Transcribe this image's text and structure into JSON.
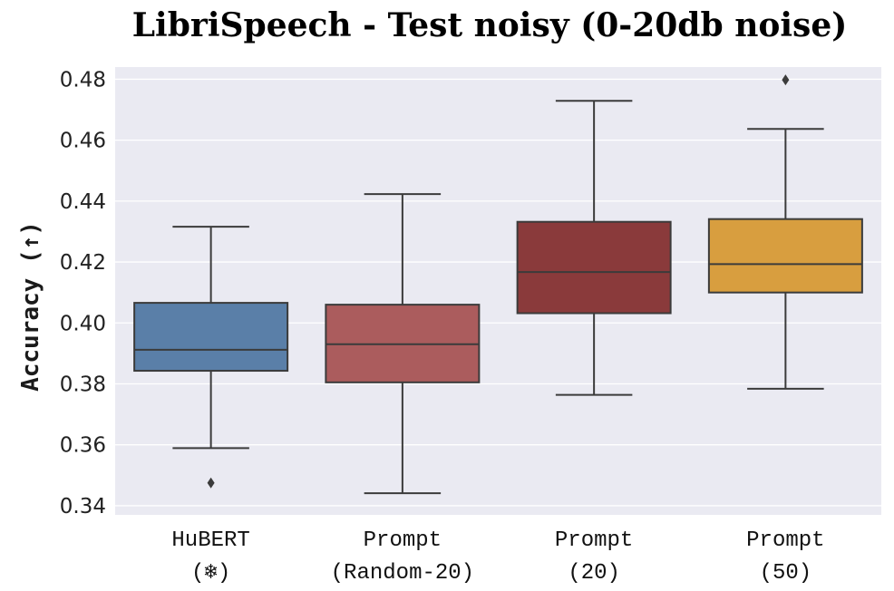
{
  "chart_data": {
    "type": "box",
    "title": "LibriSpeech - Test noisy (0-20db noise)",
    "xlabel": "",
    "ylabel": "Accuracy (↑)",
    "ylim": [
      0.337,
      0.484
    ],
    "yticks": [
      "0.34",
      "0.36",
      "0.38",
      "0.40",
      "0.42",
      "0.44",
      "0.46",
      "0.48"
    ],
    "grid": true,
    "categories": [
      {
        "line1": "HuBERT",
        "line2": "(❄)"
      },
      {
        "line1": "Prompt",
        "line2": "(Random-20)"
      },
      {
        "line1": "Prompt",
        "line2": "(20)"
      },
      {
        "line1": "Prompt",
        "line2": "(50)"
      }
    ],
    "boxes": [
      {
        "whisker_low": 0.3589,
        "q1": 0.3843,
        "median": 0.3912,
        "q3": 0.4066,
        "whisker_high": 0.4316,
        "outliers": [
          0.3475
        ],
        "color": "#5a7fa8"
      },
      {
        "whisker_low": 0.3441,
        "q1": 0.3805,
        "median": 0.393,
        "q3": 0.406,
        "whisker_high": 0.4423,
        "outliers": [],
        "color": "#ab5c5d"
      },
      {
        "whisker_low": 0.3764,
        "q1": 0.4032,
        "median": 0.4167,
        "q3": 0.4332,
        "whisker_high": 0.4729,
        "outliers": [],
        "color": "#8a3a3b"
      },
      {
        "whisker_low": 0.3784,
        "q1": 0.41,
        "median": 0.4193,
        "q3": 0.4341,
        "whisker_high": 0.4637,
        "outliers": [
          0.4798
        ],
        "color": "#d89e3f"
      }
    ]
  }
}
